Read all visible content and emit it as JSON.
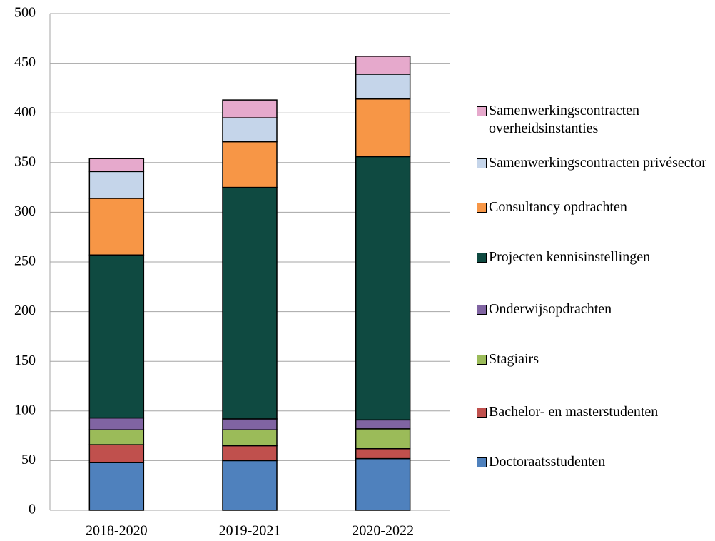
{
  "chart_data": {
    "type": "stacked_bar",
    "categories": [
      "2018-2020",
      "2019-2021",
      "2020-2022"
    ],
    "series": [
      {
        "name": "Doctoraatsstudenten",
        "color": "#4f81bd",
        "values": [
          48,
          50,
          52
        ]
      },
      {
        "name": "Bachelor- en masterstudenten",
        "color": "#c0504d",
        "values": [
          18,
          15,
          10
        ]
      },
      {
        "name": "Stagiairs",
        "color": "#9bbb59",
        "values": [
          15,
          16,
          20
        ]
      },
      {
        "name": "Onderwijsopdrachten",
        "color": "#8064a2",
        "values": [
          12,
          11,
          9
        ]
      },
      {
        "name": "Projecten kennisinstellingen",
        "color": "#0f4a41",
        "values": [
          164,
          233,
          265
        ]
      },
      {
        "name": "Consultancy opdrachten",
        "color": "#f79646",
        "values": [
          57,
          46,
          58
        ]
      },
      {
        "name": "Samenwerkingscontracten privésector",
        "color": "#c5d5ea",
        "values": [
          27,
          24,
          25
        ]
      },
      {
        "name": "Samenwerkingscontracten overheidsinstanties",
        "color": "#e6a9cc",
        "values": [
          13,
          18,
          18
        ]
      }
    ],
    "ylim": [
      0,
      500
    ],
    "yticks": [
      0,
      50,
      100,
      150,
      200,
      250,
      300,
      350,
      400,
      450,
      500
    ],
    "grid": true,
    "legend": "right"
  }
}
